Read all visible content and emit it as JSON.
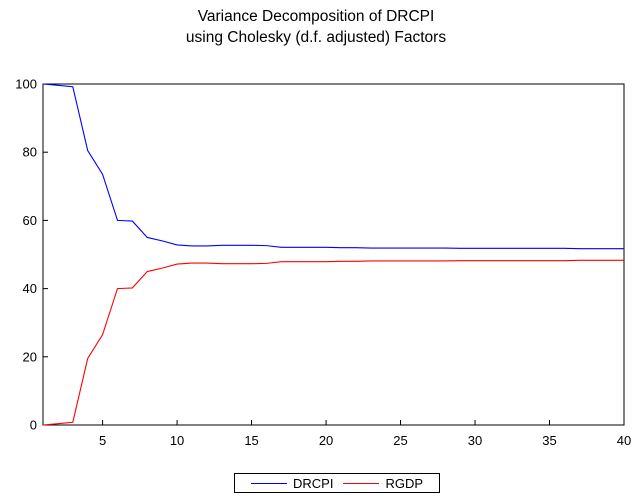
{
  "chart_data": {
    "type": "line",
    "title": [
      "Variance Decomposition of DRCPI",
      "using Cholesky (d.f. adjusted) Factors"
    ],
    "xlabel": "",
    "ylabel": "",
    "xlim": [
      1,
      40
    ],
    "ylim": [
      0,
      100
    ],
    "x_ticks": [
      5,
      10,
      15,
      20,
      25,
      30,
      35,
      40
    ],
    "y_ticks": [
      0,
      20,
      40,
      60,
      80,
      100
    ],
    "grid": false,
    "legend_position": "bottom-center",
    "x": [
      1,
      2,
      3,
      4,
      5,
      6,
      7,
      8,
      9,
      10,
      11,
      12,
      13,
      14,
      15,
      16,
      17,
      18,
      19,
      20,
      21,
      22,
      23,
      24,
      25,
      26,
      27,
      28,
      29,
      30,
      31,
      32,
      33,
      34,
      35,
      36,
      37,
      38,
      39,
      40
    ],
    "series": [
      {
        "name": "DRCPI",
        "color": "#0000ff",
        "values": [
          100,
          99.6,
          99.2,
          80.5,
          73.5,
          60,
          59.8,
          55,
          54,
          52.8,
          52.5,
          52.5,
          52.7,
          52.7,
          52.7,
          52.6,
          52.1,
          52.1,
          52.1,
          52.1,
          52,
          52,
          51.9,
          51.9,
          51.9,
          51.9,
          51.9,
          51.9,
          51.8,
          51.8,
          51.8,
          51.8,
          51.8,
          51.8,
          51.8,
          51.8,
          51.7,
          51.7,
          51.7,
          51.7
        ]
      },
      {
        "name": "RGDP",
        "color": "#ff0000",
        "values": [
          0,
          0.4,
          0.8,
          19.5,
          26.5,
          40,
          40.2,
          45,
          46,
          47.2,
          47.5,
          47.5,
          47.3,
          47.3,
          47.3,
          47.4,
          47.9,
          47.9,
          47.9,
          47.9,
          48,
          48,
          48.1,
          48.1,
          48.1,
          48.1,
          48.1,
          48.1,
          48.2,
          48.2,
          48.2,
          48.2,
          48.2,
          48.2,
          48.2,
          48.2,
          48.3,
          48.3,
          48.3,
          48.3
        ]
      }
    ]
  }
}
